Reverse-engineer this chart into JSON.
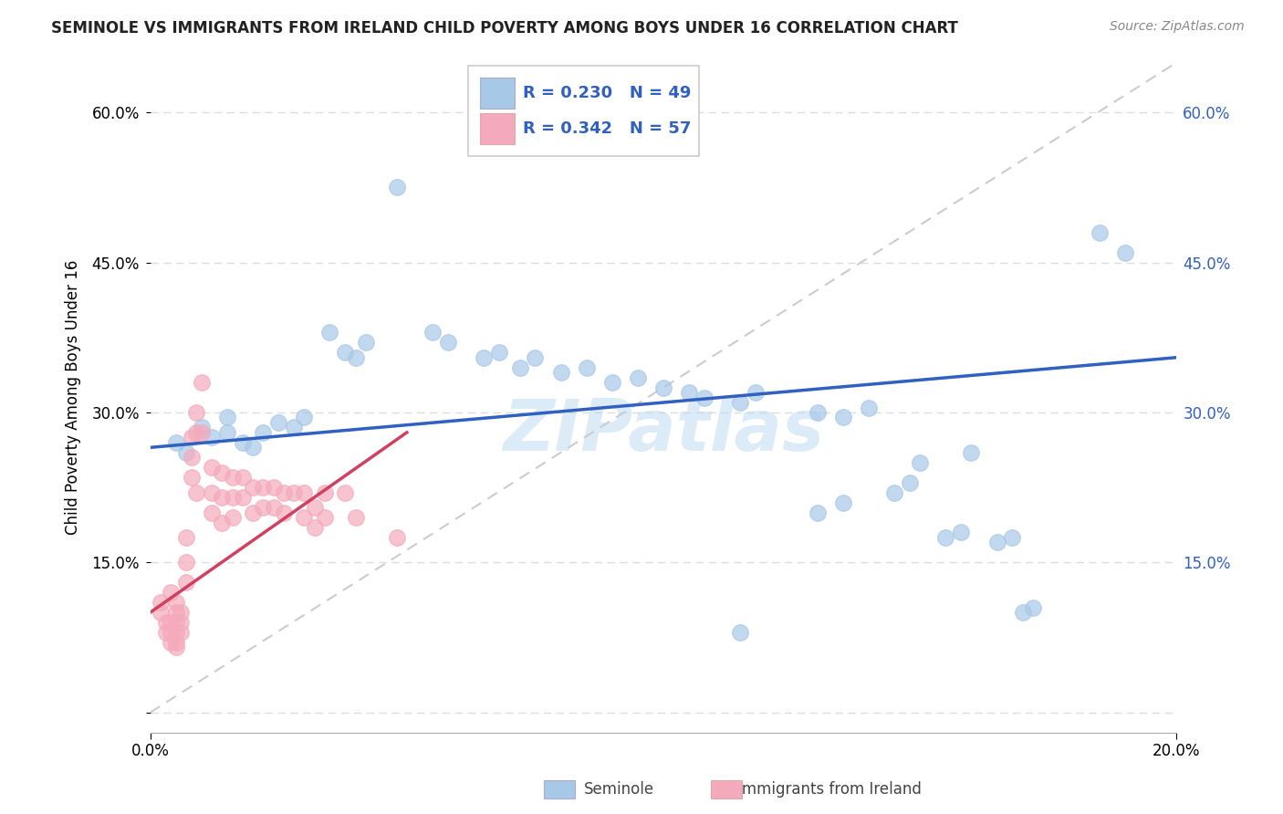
{
  "title": "SEMINOLE VS IMMIGRANTS FROM IRELAND CHILD POVERTY AMONG BOYS UNDER 16 CORRELATION CHART",
  "source": "Source: ZipAtlas.com",
  "ylabel": "Child Poverty Among Boys Under 16",
  "R_seminole": 0.23,
  "N_seminole": 49,
  "R_ireland": 0.342,
  "N_ireland": 57,
  "seminole_color": "#a8c8e8",
  "ireland_color": "#f4aabb",
  "seminole_line_color": "#3060c0",
  "ireland_line_color": "#d04060",
  "diag_line_color": "#cccccc",
  "watermark_color": "#b8d8f0",
  "seminole_points": [
    [
      0.005,
      0.27
    ],
    [
      0.007,
      0.26
    ],
    [
      0.01,
      0.285
    ],
    [
      0.012,
      0.275
    ],
    [
      0.015,
      0.28
    ],
    [
      0.015,
      0.295
    ],
    [
      0.018,
      0.27
    ],
    [
      0.02,
      0.265
    ],
    [
      0.022,
      0.28
    ],
    [
      0.025,
      0.29
    ],
    [
      0.028,
      0.285
    ],
    [
      0.03,
      0.295
    ],
    [
      0.035,
      0.38
    ],
    [
      0.038,
      0.36
    ],
    [
      0.04,
      0.355
    ],
    [
      0.042,
      0.37
    ],
    [
      0.048,
      0.525
    ],
    [
      0.055,
      0.38
    ],
    [
      0.058,
      0.37
    ],
    [
      0.065,
      0.355
    ],
    [
      0.068,
      0.36
    ],
    [
      0.072,
      0.345
    ],
    [
      0.075,
      0.355
    ],
    [
      0.08,
      0.34
    ],
    [
      0.085,
      0.345
    ],
    [
      0.09,
      0.33
    ],
    [
      0.095,
      0.335
    ],
    [
      0.1,
      0.325
    ],
    [
      0.105,
      0.32
    ],
    [
      0.108,
      0.315
    ],
    [
      0.115,
      0.31
    ],
    [
      0.118,
      0.32
    ],
    [
      0.13,
      0.3
    ],
    [
      0.135,
      0.295
    ],
    [
      0.14,
      0.305
    ],
    [
      0.145,
      0.22
    ],
    [
      0.148,
      0.23
    ],
    [
      0.155,
      0.175
    ],
    [
      0.158,
      0.18
    ],
    [
      0.165,
      0.17
    ],
    [
      0.168,
      0.175
    ],
    [
      0.17,
      0.1
    ],
    [
      0.172,
      0.105
    ],
    [
      0.13,
      0.2
    ],
    [
      0.135,
      0.21
    ],
    [
      0.15,
      0.25
    ],
    [
      0.16,
      0.26
    ],
    [
      0.185,
      0.48
    ],
    [
      0.19,
      0.46
    ],
    [
      0.115,
      0.08
    ]
  ],
  "ireland_points": [
    [
      0.002,
      0.11
    ],
    [
      0.002,
      0.1
    ],
    [
      0.003,
      0.09
    ],
    [
      0.003,
      0.08
    ],
    [
      0.004,
      0.12
    ],
    [
      0.004,
      0.09
    ],
    [
      0.004,
      0.08
    ],
    [
      0.004,
      0.07
    ],
    [
      0.005,
      0.11
    ],
    [
      0.005,
      0.1
    ],
    [
      0.005,
      0.09
    ],
    [
      0.005,
      0.08
    ],
    [
      0.005,
      0.07
    ],
    [
      0.005,
      0.065
    ],
    [
      0.006,
      0.1
    ],
    [
      0.006,
      0.09
    ],
    [
      0.006,
      0.08
    ],
    [
      0.007,
      0.175
    ],
    [
      0.007,
      0.15
    ],
    [
      0.007,
      0.13
    ],
    [
      0.008,
      0.275
    ],
    [
      0.008,
      0.255
    ],
    [
      0.008,
      0.235
    ],
    [
      0.009,
      0.3
    ],
    [
      0.009,
      0.28
    ],
    [
      0.009,
      0.22
    ],
    [
      0.01,
      0.33
    ],
    [
      0.01,
      0.28
    ],
    [
      0.012,
      0.245
    ],
    [
      0.012,
      0.22
    ],
    [
      0.012,
      0.2
    ],
    [
      0.014,
      0.24
    ],
    [
      0.014,
      0.215
    ],
    [
      0.014,
      0.19
    ],
    [
      0.016,
      0.235
    ],
    [
      0.016,
      0.215
    ],
    [
      0.016,
      0.195
    ],
    [
      0.018,
      0.235
    ],
    [
      0.018,
      0.215
    ],
    [
      0.02,
      0.225
    ],
    [
      0.02,
      0.2
    ],
    [
      0.022,
      0.225
    ],
    [
      0.022,
      0.205
    ],
    [
      0.024,
      0.225
    ],
    [
      0.024,
      0.205
    ],
    [
      0.026,
      0.22
    ],
    [
      0.026,
      0.2
    ],
    [
      0.028,
      0.22
    ],
    [
      0.03,
      0.22
    ],
    [
      0.03,
      0.195
    ],
    [
      0.032,
      0.205
    ],
    [
      0.032,
      0.185
    ],
    [
      0.034,
      0.22
    ],
    [
      0.034,
      0.195
    ],
    [
      0.038,
      0.22
    ],
    [
      0.04,
      0.195
    ],
    [
      0.048,
      0.175
    ]
  ],
  "xlim": [
    0.0,
    0.2
  ],
  "ylim": [
    -0.02,
    0.65
  ],
  "y_ticks": [
    0.0,
    0.15,
    0.3,
    0.45,
    0.6
  ],
  "y_tick_labels_left": [
    "",
    "15.0%",
    "30.0%",
    "45.0%",
    "60.0%"
  ],
  "y_tick_labels_right": [
    "",
    "15.0%",
    "30.0%",
    "45.0%",
    "60.0%"
  ],
  "x_tick_vals": [
    0.0,
    0.2
  ],
  "x_tick_labels": [
    "0.0%",
    "20.0%"
  ],
  "background_color": "#ffffff",
  "grid_color": "#dddddd",
  "seminole_trend": [
    0.265,
    0.355
  ],
  "ireland_trend_x": [
    0.0,
    0.05
  ],
  "ireland_trend_y": [
    0.1,
    0.28
  ]
}
